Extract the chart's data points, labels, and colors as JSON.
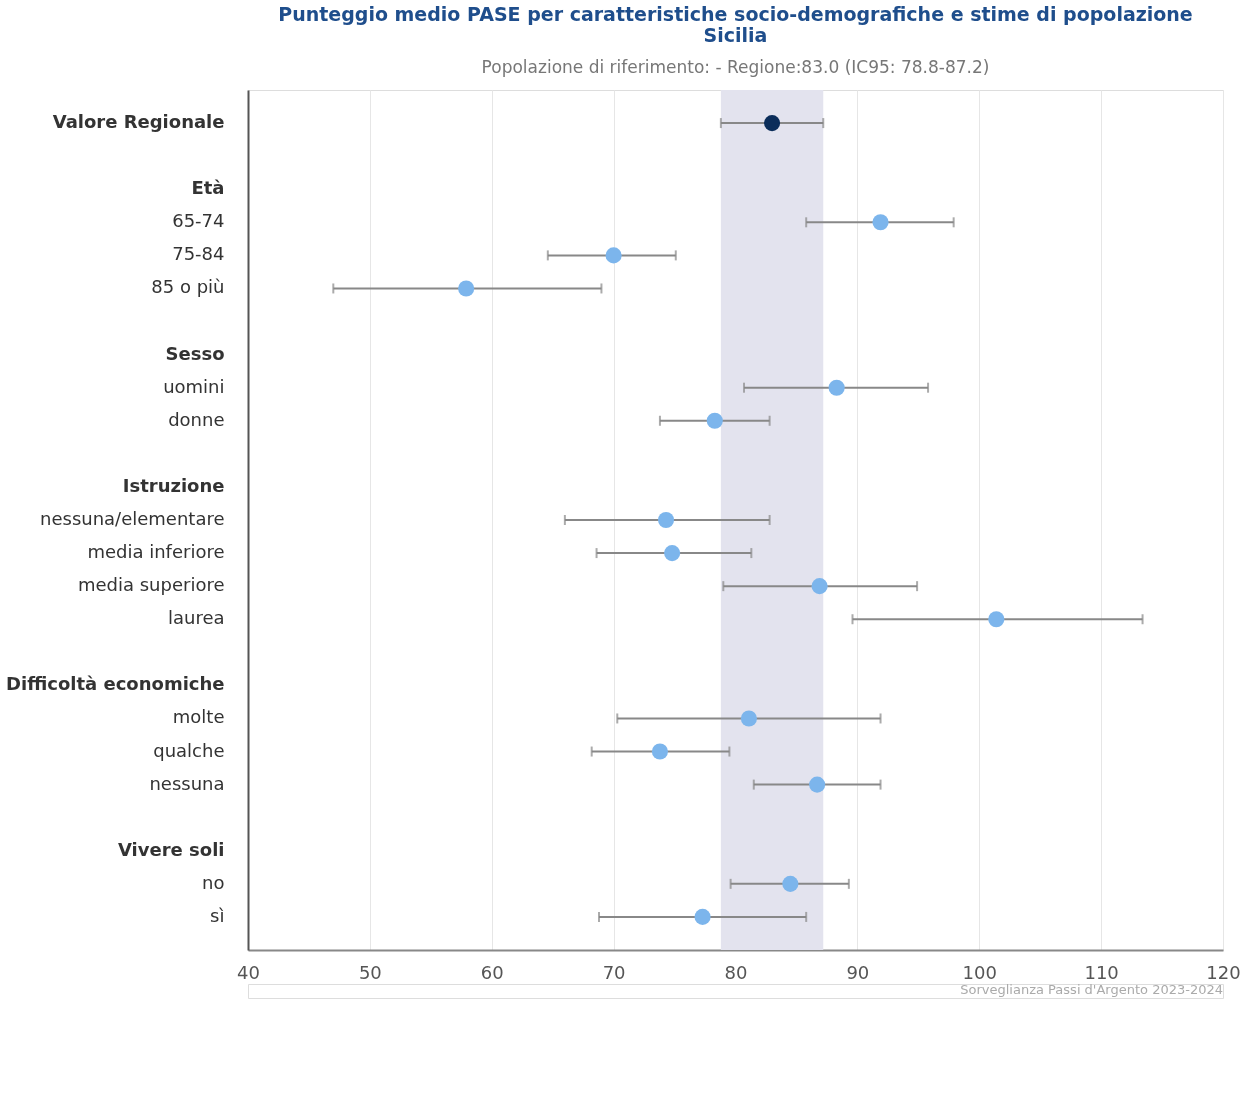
{
  "chart_data": {
    "type": "scatter",
    "title": "Punteggio medio PASE per caratteristiche socio-demografiche e stime di popolazione\nSicilia",
    "subtitle": "Popolazione di riferimento: - Regione:83.0 (IC95: 78.8-87.2)",
    "categories": [
      "Valore Regionale",
      null,
      "Età",
      "65-74",
      "75-84",
      "85 o più",
      null,
      "Sesso",
      "uomini",
      "donne",
      null,
      "Istruzione",
      "nessuna/elementare",
      "media inferiore",
      "media superiore",
      "laurea",
      null,
      "Difficoltà economiche",
      "molte",
      "qualche",
      "nessuna",
      null,
      "Vivere soli",
      "no",
      "sì"
    ],
    "series": [
      {
        "color": "#0b2d5a",
        "values": [
          83.0,
          null,
          null,
          null,
          null,
          null,
          null,
          null,
          null,
          null,
          null,
          null,
          null,
          null,
          null,
          null,
          null,
          null,
          null,
          null,
          null,
          null,
          null,
          null,
          null
        ],
        "errors": [
          [
            78.8,
            87.2
          ],
          null,
          null,
          null,
          null,
          null,
          null,
          null,
          null,
          null,
          null,
          null,
          null,
          null,
          null,
          null,
          null,
          null,
          null,
          null,
          null,
          null,
          null,
          null,
          null
        ]
      },
      {
        "color": "#7cb5ec",
        "values": [
          null,
          null,
          null,
          91.9,
          70.0,
          57.9,
          null,
          null,
          88.3,
          78.3,
          null,
          null,
          74.3,
          74.8,
          86.9,
          101.4,
          null,
          null,
          81.1,
          73.8,
          86.7,
          null,
          null,
          84.5,
          77.3
        ],
        "errors": [
          null,
          null,
          null,
          [
            85.8,
            97.9
          ],
          [
            64.6,
            75.1
          ],
          [
            47.0,
            69.0
          ],
          null,
          null,
          [
            80.7,
            95.8
          ],
          [
            73.8,
            82.8
          ],
          null,
          null,
          [
            66.0,
            82.8
          ],
          [
            68.6,
            81.3
          ],
          [
            79.0,
            94.9
          ],
          [
            89.6,
            113.4
          ],
          null,
          null,
          [
            70.3,
            91.9
          ],
          [
            68.2,
            79.5
          ],
          [
            81.5,
            91.9
          ],
          null,
          null,
          [
            79.6,
            89.3
          ],
          [
            68.8,
            85.8
          ]
        ]
      }
    ],
    "orientation": "horizontal",
    "xlim": [
      40,
      120
    ],
    "xticks": [
      40,
      50,
      60,
      70,
      80,
      90,
      100,
      110,
      120
    ],
    "bands": [
      {
        "axis": "x",
        "from": 78.8,
        "to": 87.2,
        "color": "#e3e3ee"
      }
    ],
    "grid": "x",
    "marker": "circle",
    "annotations": [
      "Sorveglianza Passi d'Argento 2023-2024"
    ]
  }
}
